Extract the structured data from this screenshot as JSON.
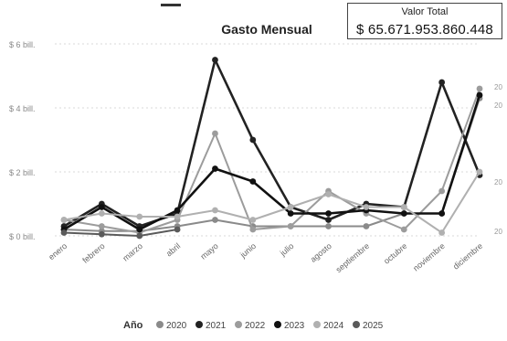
{
  "chart_data": {
    "type": "line",
    "title": "Gasto Mensual",
    "xlabel": "",
    "ylabel": "",
    "categories": [
      "enero",
      "febrero",
      "marzo",
      "abril",
      "mayo",
      "junio",
      "julio",
      "agosto",
      "septiembre",
      "octubre",
      "noviembre",
      "diciembre"
    ],
    "yticks": [
      {
        "value": 0,
        "label": "$ 0 bill."
      },
      {
        "value": 2,
        "label": "$ 2 bill."
      },
      {
        "value": 4,
        "label": "$ 4 bill."
      },
      {
        "value": 6,
        "label": "$ 6 bill."
      }
    ],
    "ylim": [
      0,
      6
    ],
    "grid": true,
    "legend": {
      "title": "Año",
      "position": "bottom"
    },
    "series": [
      {
        "name": "2020",
        "color": "#8a8a8a",
        "values": [
          0.2,
          0.15,
          0.15,
          0.3,
          0.5,
          0.3,
          0.3,
          0.3,
          0.3,
          0.7,
          0.7,
          4.3
        ]
      },
      {
        "name": "2021",
        "color": "#222222",
        "values": [
          0.3,
          1.0,
          0.3,
          0.7,
          5.5,
          3.0,
          0.9,
          0.5,
          1.0,
          0.9,
          4.8,
          1.9
        ]
      },
      {
        "name": "2022",
        "color": "#9c9c9c",
        "values": [
          0.5,
          0.3,
          0.1,
          0.5,
          3.2,
          0.2,
          0.3,
          1.4,
          0.7,
          0.2,
          1.4,
          4.6
        ]
      },
      {
        "name": "2023",
        "color": "#111111",
        "values": [
          0.2,
          0.9,
          0.2,
          0.8,
          2.1,
          1.7,
          0.7,
          0.7,
          0.8,
          0.7,
          0.7,
          4.4
        ]
      },
      {
        "name": "2024",
        "color": "#b0b0b0",
        "values": [
          0.5,
          0.7,
          0.6,
          0.6,
          0.8,
          0.5,
          0.9,
          1.3,
          0.9,
          0.9,
          0.1,
          2.0
        ]
      },
      {
        "name": "2025",
        "color": "#5a5a5a",
        "values": [
          0.1,
          0.05,
          0.0,
          0.2,
          null,
          null,
          null,
          null,
          null,
          null,
          null,
          null
        ]
      }
    ],
    "right_labels": [
      "20",
      "20",
      "20",
      "20"
    ]
  },
  "card": {
    "title": "Valor Total",
    "value": "$ 65.671.953.860.448"
  }
}
